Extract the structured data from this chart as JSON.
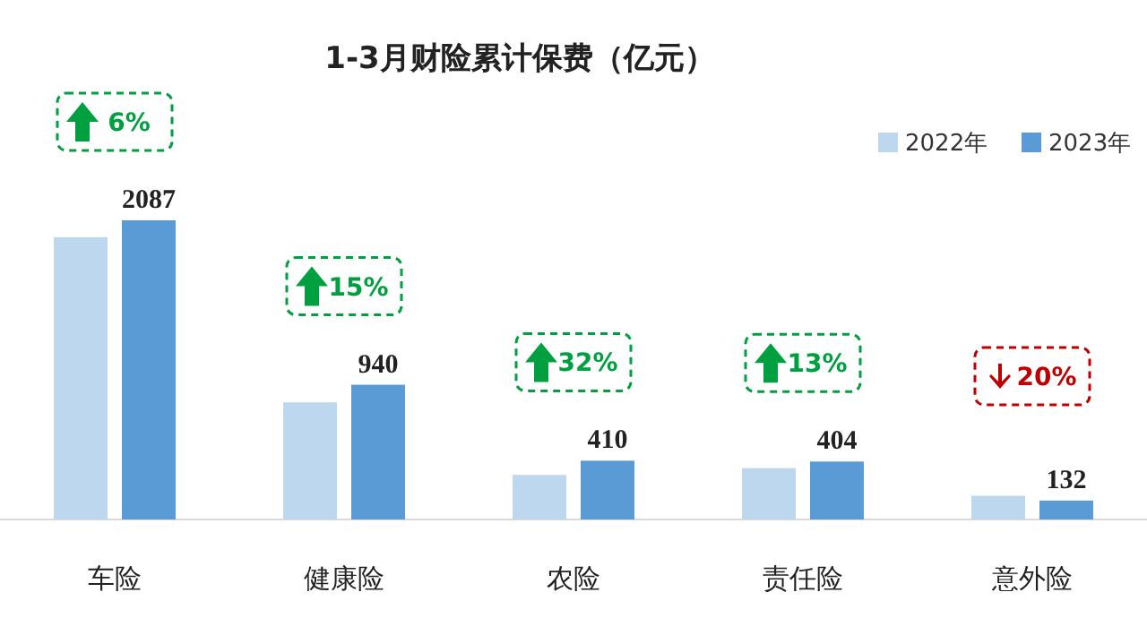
{
  "chart_data": {
    "type": "bar",
    "title": "1-3月财险累计保费（亿元）",
    "categories": [
      "车险",
      "健康险",
      "农险",
      "责任险",
      "意外险"
    ],
    "series": [
      {
        "name": "2022年",
        "color": "#bdd7ee",
        "values": [
          1969,
          817,
          311,
          358,
          165
        ]
      },
      {
        "name": "2023年",
        "color": "#5b9bd5",
        "values": [
          2087,
          940,
          410,
          404,
          132
        ],
        "value_labels": [
          "2087",
          "940",
          "410",
          "404",
          "132"
        ]
      }
    ],
    "annotations": [
      "6%",
      "15%",
      "32%",
      "13%",
      "20%"
    ],
    "legend": "top right"
  }
}
